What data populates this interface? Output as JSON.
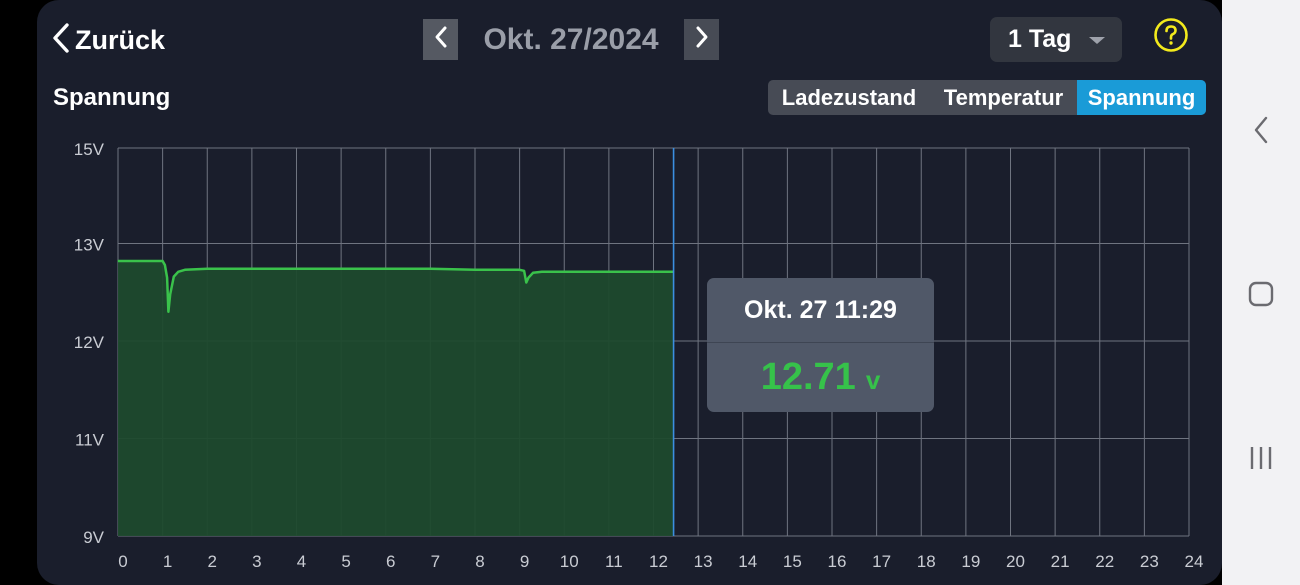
{
  "header": {
    "back_label": "Zurück",
    "date": "Okt. 27/2024",
    "range_label": "1 Tag"
  },
  "chart_title": "Spannung",
  "tabs": [
    {
      "label": "Ladezustand",
      "active": false
    },
    {
      "label": "Temperatur",
      "active": false
    },
    {
      "label": "Spannung",
      "active": true
    }
  ],
  "tooltip": {
    "date": "Okt. 27 11:29",
    "value": "12.71",
    "unit": "v"
  },
  "colors": {
    "accent": "#1a9bd7",
    "line": "#3ac24b",
    "value": "#36c24a",
    "background": "#1a1e2c"
  },
  "chart_data": {
    "type": "area",
    "title": "Spannung",
    "xlabel": "",
    "ylabel": "",
    "xlim": [
      0,
      24
    ],
    "x_ticks": [
      0,
      1,
      2,
      3,
      4,
      5,
      6,
      7,
      8,
      9,
      10,
      11,
      12,
      13,
      14,
      15,
      16,
      17,
      18,
      19,
      20,
      21,
      22,
      23,
      24
    ],
    "y_tick_labels": [
      "15V",
      "13V",
      "12V",
      "11V",
      "9V"
    ],
    "grid": true,
    "cursor_x": 12.45,
    "series": [
      {
        "x": [
          0.0,
          0.5,
          1.0,
          1.05,
          1.1,
          1.13,
          1.17,
          1.25,
          1.35,
          1.5,
          2.0,
          3.0,
          4.0,
          5.0,
          6.0,
          7.0,
          8.0,
          8.5,
          9.0,
          9.1,
          9.15,
          9.2,
          9.3,
          9.5,
          10.0,
          11.0,
          12.0,
          12.45
        ],
        "y": [
          12.82,
          12.82,
          12.82,
          12.78,
          12.65,
          12.3,
          12.48,
          12.66,
          12.71,
          12.73,
          12.74,
          12.74,
          12.74,
          12.74,
          12.74,
          12.74,
          12.73,
          12.73,
          12.73,
          12.72,
          12.6,
          12.65,
          12.7,
          12.71,
          12.71,
          12.71,
          12.71,
          12.71
        ]
      }
    ]
  }
}
